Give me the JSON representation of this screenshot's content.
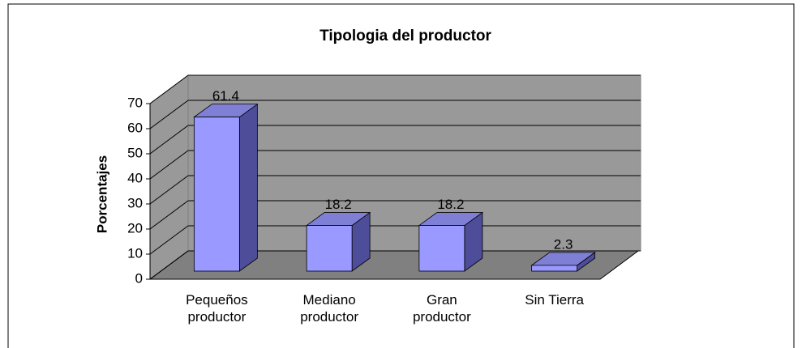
{
  "chart_data": {
    "type": "bar",
    "title": "Tipologia del productor",
    "y_label": "Porcentajes",
    "categories": [
      "Pequeños productor",
      "Mediano productor",
      "Gran productor",
      "Sin Tierra"
    ],
    "values": [
      61.4,
      18.2,
      18.2,
      2.3
    ],
    "color": "#9999ff",
    "ylim": [
      0,
      70
    ],
    "yticks": [
      0,
      10,
      20,
      30,
      40,
      50,
      60,
      70
    ],
    "grid": true
  }
}
